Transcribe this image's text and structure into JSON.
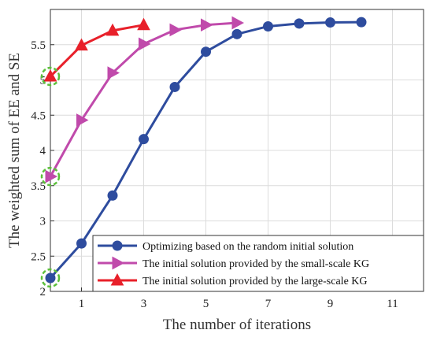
{
  "chart_data": {
    "type": "line",
    "title": "",
    "xlabel": "The number of iterations",
    "ylabel": "The weighted sum of EE and SE",
    "xlim": [
      0,
      12
    ],
    "ylim": [
      2,
      6
    ],
    "xticks": [
      1,
      3,
      5,
      7,
      9,
      11
    ],
    "yticks": [
      2,
      2.5,
      3,
      3.5,
      4,
      4.5,
      5,
      5.5
    ],
    "xtick_labels": [
      "1",
      "3",
      "5",
      "7",
      "9",
      "11"
    ],
    "ytick_labels": [
      "2",
      "2.5",
      "3",
      "3.5",
      "4",
      "4.5",
      "5",
      "5.5"
    ],
    "grid": true,
    "legend_position": "bottom-right",
    "series": [
      {
        "name": "Optimizing based on the random initial solution",
        "color": "#2e4c9e",
        "marker": "circle",
        "x": [
          0,
          1,
          2,
          3,
          4,
          5,
          6,
          7,
          8,
          9,
          10
        ],
        "y": [
          2.19,
          2.68,
          3.36,
          4.16,
          4.9,
          5.4,
          5.65,
          5.76,
          5.8,
          5.815,
          5.82
        ]
      },
      {
        "name": "The initial solution provided by the small-scale KG",
        "color": "#c04aab",
        "marker": "triangle-right",
        "x": [
          0,
          1,
          2,
          3,
          4,
          5,
          6
        ],
        "y": [
          3.63,
          4.43,
          5.1,
          5.51,
          5.71,
          5.78,
          5.81
        ]
      },
      {
        "name": "The initial solution provided by the large-scale KG",
        "color": "#e8202a",
        "marker": "triangle-up",
        "x": [
          0,
          1,
          2,
          3
        ],
        "y": [
          5.05,
          5.49,
          5.7,
          5.78
        ]
      }
    ],
    "annotations": {
      "type": "dashed-circle",
      "color": "#5cbf3b",
      "points": [
        [
          0,
          2.19
        ],
        [
          0,
          3.63
        ],
        [
          0,
          5.05
        ]
      ]
    }
  }
}
